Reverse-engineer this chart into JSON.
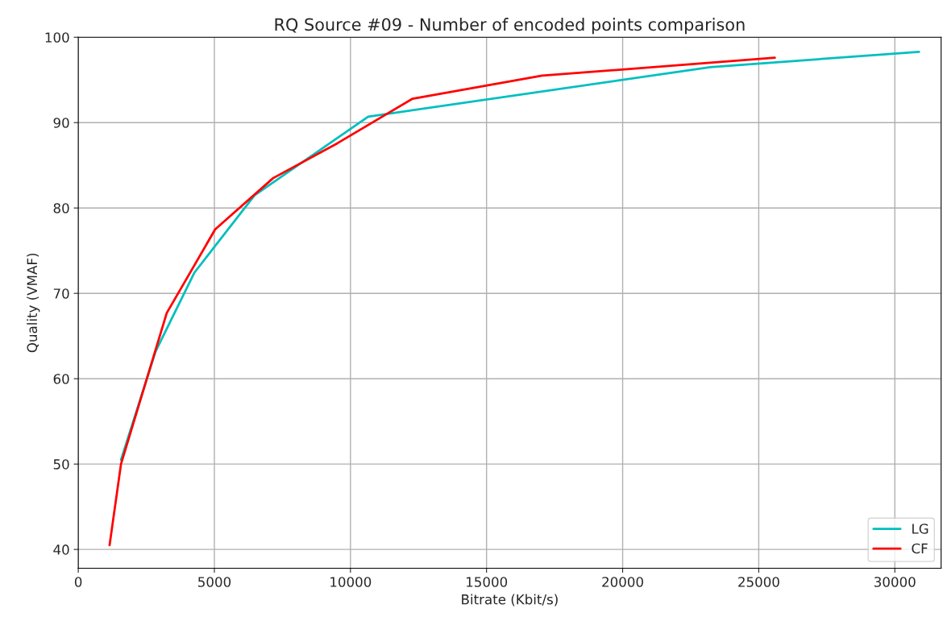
{
  "chart_data": {
    "type": "line",
    "title": "RQ Source #09 - Number of encoded points comparison",
    "xlabel": "Bitrate (Kbit/s)",
    "ylabel": "Quality (VMAF)",
    "xlim": [
      0,
      31700
    ],
    "ylim": [
      37.8,
      100
    ],
    "xticks": [
      0,
      5000,
      10000,
      15000,
      20000,
      25000,
      30000
    ],
    "yticks": [
      40,
      50,
      60,
      70,
      80,
      90,
      100
    ],
    "grid": true,
    "legend": "bottom right",
    "series": [
      {
        "name": "LG",
        "color": "#00bfbf",
        "x": [
          1570,
          2840,
          4260,
          6480,
          10650,
          23220,
          30890
        ],
        "values": [
          50.5,
          63.2,
          72.4,
          81.5,
          90.7,
          96.5,
          98.3
        ]
      },
      {
        "name": "CF",
        "color": "#ff0000",
        "x": [
          1150,
          1570,
          3250,
          5030,
          7160,
          9530,
          12280,
          17040,
          25590
        ],
        "values": [
          40.5,
          50.0,
          67.7,
          77.5,
          83.5,
          87.6,
          92.8,
          95.5,
          97.6
        ]
      }
    ]
  }
}
